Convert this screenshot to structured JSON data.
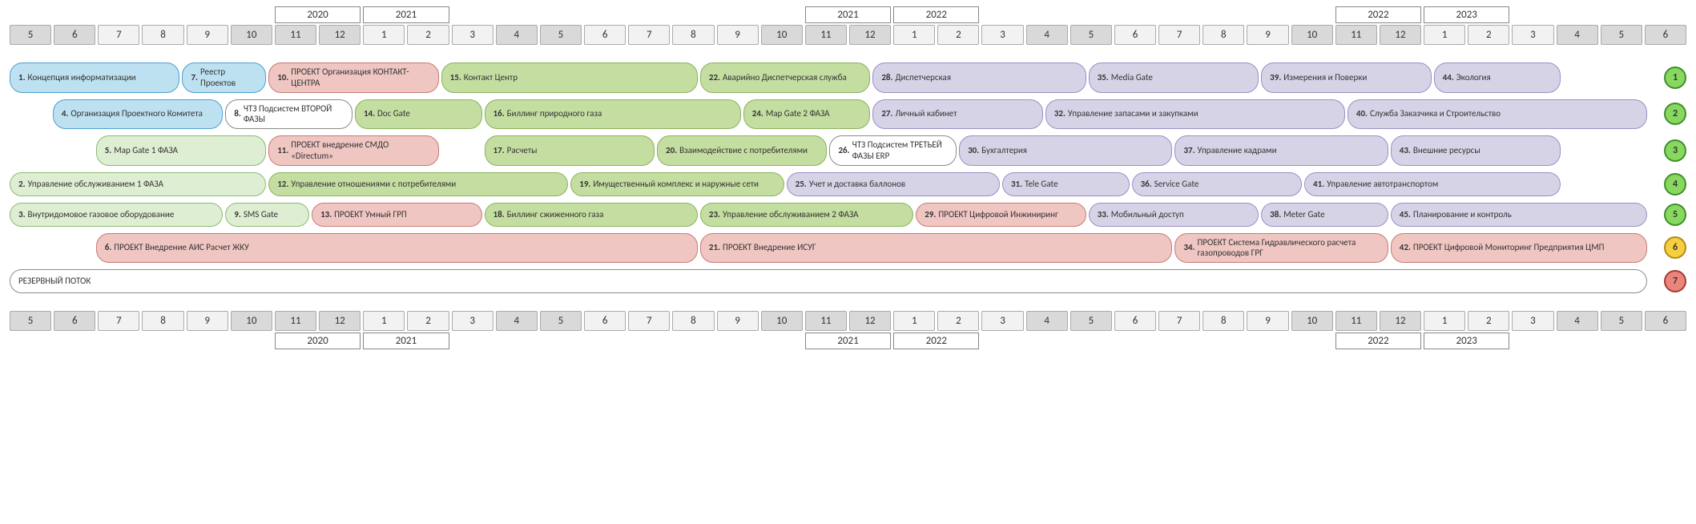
{
  "columns": 38,
  "months": {
    "labels": [
      "5",
      "6",
      "7",
      "8",
      "9",
      "10",
      "11",
      "12",
      "1",
      "2",
      "3",
      "4",
      "5",
      "6",
      "7",
      "8",
      "9",
      "10",
      "11",
      "12",
      "1",
      "2",
      "3",
      "4",
      "5",
      "6",
      "7",
      "8",
      "9",
      "10",
      "11",
      "12",
      "1",
      "2",
      "3",
      "4",
      "5",
      "6"
    ],
    "shaded_indices": [
      0,
      1,
      5,
      6,
      7,
      11,
      12,
      17,
      18,
      19,
      23,
      24,
      29,
      30,
      31,
      35,
      36,
      37
    ],
    "shade_bg": "#d9d9d9",
    "plain_bg": "#f2f2f2",
    "border": "#aaaaaa"
  },
  "year_labels": [
    {
      "col_index": 6,
      "span": 2,
      "text": "2020"
    },
    {
      "col_index": 8,
      "span": 2,
      "text": "2021"
    },
    {
      "col_index": 18,
      "span": 2,
      "text": "2021"
    },
    {
      "col_index": 20,
      "span": 2,
      "text": "2022"
    },
    {
      "col_index": 30,
      "span": 2,
      "text": "2022"
    },
    {
      "col_index": 32,
      "span": 2,
      "text": "2023"
    }
  ],
  "palette": {
    "blue": {
      "bg": "#bde1f1",
      "border": "#4f9fce"
    },
    "white": {
      "bg": "#ffffff",
      "border": "#8a8a8a"
    },
    "dgreen": {
      "bg": "#deeed3",
      "border": "#8db973"
    },
    "red": {
      "bg": "#efc6c2",
      "border": "#c87b74"
    },
    "green": {
      "bg": "#c4dda0",
      "border": "#8cb25f"
    },
    "purple": {
      "bg": "#d7d3e7",
      "border": "#9a8ec7"
    }
  },
  "row_circle_colors": {
    "green": {
      "bg": "#88d860",
      "border": "#3f8f2a"
    },
    "yellow": {
      "bg": "#f5cf3e",
      "border": "#b48a1a"
    },
    "red": {
      "bg": "#ea857b",
      "border": "#a33c34"
    }
  },
  "rows": [
    {
      "circle": {
        "label": "1",
        "color": "green"
      },
      "bars": [
        {
          "num": "1",
          "label": "Концепция информатизации",
          "color": "blue",
          "start": 0,
          "span": 4
        },
        {
          "num": "7",
          "label": "Реестр Проектов",
          "color": "blue",
          "start": 4,
          "span": 2
        },
        {
          "num": "10",
          "label": "ПРОЕКТ Организация КОНТАКТ-ЦЕНТРА",
          "color": "red",
          "start": 6,
          "span": 4
        },
        {
          "num": "15",
          "label": "Контакт Центр",
          "color": "green",
          "start": 10,
          "span": 6
        },
        {
          "num": "22",
          "label": "Аварийно Диспетчерская служба",
          "color": "green",
          "start": 16,
          "span": 4
        },
        {
          "num": "28",
          "label": "Диспетчерская",
          "color": "purple",
          "start": 20,
          "span": 5
        },
        {
          "num": "35",
          "label": "Media Gate",
          "color": "purple",
          "start": 25,
          "span": 4
        },
        {
          "num": "39",
          "label": "Измерения и Поверки",
          "color": "purple",
          "start": 29,
          "span": 4
        },
        {
          "num": "44",
          "label": "Экология",
          "color": "purple",
          "start": 33,
          "span": 3
        }
      ]
    },
    {
      "circle": {
        "label": "2",
        "color": "green"
      },
      "bars": [
        {
          "num": "4",
          "label": "Организация Проектного Комитета",
          "color": "blue",
          "start": 1,
          "span": 4
        },
        {
          "num": "8",
          "label": "ЧТЗ Подсистем ВТОРОЙ ФАЗЫ",
          "color": "white",
          "start": 5,
          "span": 3
        },
        {
          "num": "14",
          "label": "Doc Gate",
          "color": "green",
          "start": 8,
          "span": 3
        },
        {
          "num": "16",
          "label": "Биллинг природного газа",
          "color": "green",
          "start": 11,
          "span": 6
        },
        {
          "num": "24",
          "label": "Map Gate 2 ФАЗА",
          "color": "green",
          "start": 17,
          "span": 3
        },
        {
          "num": "27",
          "label": "Личный кабинет",
          "color": "purple",
          "start": 20,
          "span": 4
        },
        {
          "num": "32",
          "label": "Управление запасами и закупками",
          "color": "purple",
          "start": 24,
          "span": 7
        },
        {
          "num": "40",
          "label": "Служба Заказчика и Строительство",
          "color": "purple",
          "start": 31,
          "span": 7
        }
      ]
    },
    {
      "circle": {
        "label": "3",
        "color": "green"
      },
      "bars": [
        {
          "num": "5",
          "label": "Map Gate 1 ФАЗА",
          "color": "dgreen",
          "start": 2,
          "span": 4
        },
        {
          "num": "11",
          "label": "ПРОЕКТ внедрение СМДО «Directum»",
          "color": "red",
          "start": 6,
          "span": 4
        },
        {
          "num": "17",
          "label": "Расчеты",
          "color": "green",
          "start": 11,
          "span": 4
        },
        {
          "num": "20",
          "label": "Взаимодействие с потребителями",
          "color": "green",
          "start": 15,
          "span": 4
        },
        {
          "num": "26",
          "label": "ЧТЗ Подсистем ТРЕТЬЕЙ ФАЗЫ ERP",
          "color": "white",
          "start": 19,
          "span": 3
        },
        {
          "num": "30",
          "label": "Бухгалтерия",
          "color": "purple",
          "start": 22,
          "span": 5
        },
        {
          "num": "37",
          "label": "Управление кадрами",
          "color": "purple",
          "start": 27,
          "span": 5
        },
        {
          "num": "43",
          "label": "Внешние ресурсы",
          "color": "purple",
          "start": 32,
          "span": 4
        }
      ]
    },
    {
      "circle": {
        "label": "4",
        "color": "green"
      },
      "bars": [
        {
          "num": "2",
          "label": "Управление обслуживанием 1 ФАЗА",
          "color": "dgreen",
          "start": 0,
          "span": 6
        },
        {
          "num": "12",
          "label": "Управление отношениями с потребителями",
          "color": "green",
          "start": 6,
          "span": 7
        },
        {
          "num": "19",
          "label": "Имущественный комплекс и наружные сети",
          "color": "green",
          "start": 13,
          "span": 5
        },
        {
          "num": "25",
          "label": "Учет и доставка баллонов",
          "color": "purple",
          "start": 18,
          "span": 5
        },
        {
          "num": "31",
          "label": "Tele Gate",
          "color": "purple",
          "start": 23,
          "span": 3
        },
        {
          "num": "36",
          "label": "Service Gate",
          "color": "purple",
          "start": 26,
          "span": 4
        },
        {
          "num": "41",
          "label": "Управление автотранспортом",
          "color": "purple",
          "start": 30,
          "span": 6
        }
      ]
    },
    {
      "circle": {
        "label": "5",
        "color": "green"
      },
      "bars": [
        {
          "num": "3",
          "label": "Внутридомовое газовое оборудование",
          "color": "dgreen",
          "start": 0,
          "span": 5
        },
        {
          "num": "9",
          "label": "SMS Gate",
          "color": "dgreen",
          "start": 5,
          "span": 2
        },
        {
          "num": "13",
          "label": "ПРОЕКТ Умный ГРП",
          "color": "red",
          "start": 7,
          "span": 4
        },
        {
          "num": "18",
          "label": "Биллинг сжиженного газа",
          "color": "green",
          "start": 11,
          "span": 5
        },
        {
          "num": "23",
          "label": "Управление обслуживанием 2 ФАЗА",
          "color": "green",
          "start": 16,
          "span": 5
        },
        {
          "num": "29",
          "label": "ПРОЕКТ Цифровой Инжиниринг",
          "color": "red",
          "start": 21,
          "span": 4
        },
        {
          "num": "33",
          "label": "Мобильный доступ",
          "color": "purple",
          "start": 25,
          "span": 4
        },
        {
          "num": "38",
          "label": "Meter Gate",
          "color": "purple",
          "start": 29,
          "span": 3
        },
        {
          "num": "45",
          "label": "Планирование и контроль",
          "color": "purple",
          "start": 32,
          "span": 6
        }
      ]
    },
    {
      "circle": {
        "label": "6",
        "color": "yellow"
      },
      "bars": [
        {
          "num": "6",
          "label": "ПРОЕКТ Внедрение АИС Расчет ЖКУ",
          "color": "red",
          "start": 2,
          "span": 14
        },
        {
          "num": "21",
          "label": "ПРОЕКТ Внедрение ИСУГ",
          "color": "red",
          "start": 16,
          "span": 11
        },
        {
          "num": "34",
          "label": "ПРОЕКТ Система Гидравлического расчета газопроводов ГРГ",
          "color": "red",
          "start": 27,
          "span": 5
        },
        {
          "num": "42",
          "label": "ПРОЕКТ Цифровой Мониторинг Предприятия ЦМП",
          "color": "red",
          "start": 32,
          "span": 6
        }
      ]
    },
    {
      "circle": {
        "label": "7",
        "color": "red"
      },
      "bars": [
        {
          "num": "",
          "label": "РЕЗЕРВНЫЙ ПОТОК",
          "color": "white",
          "start": 0,
          "span": 38
        }
      ]
    }
  ],
  "reserve_row_label": "РЕЗЕРВНЫЙ ПОТОК"
}
